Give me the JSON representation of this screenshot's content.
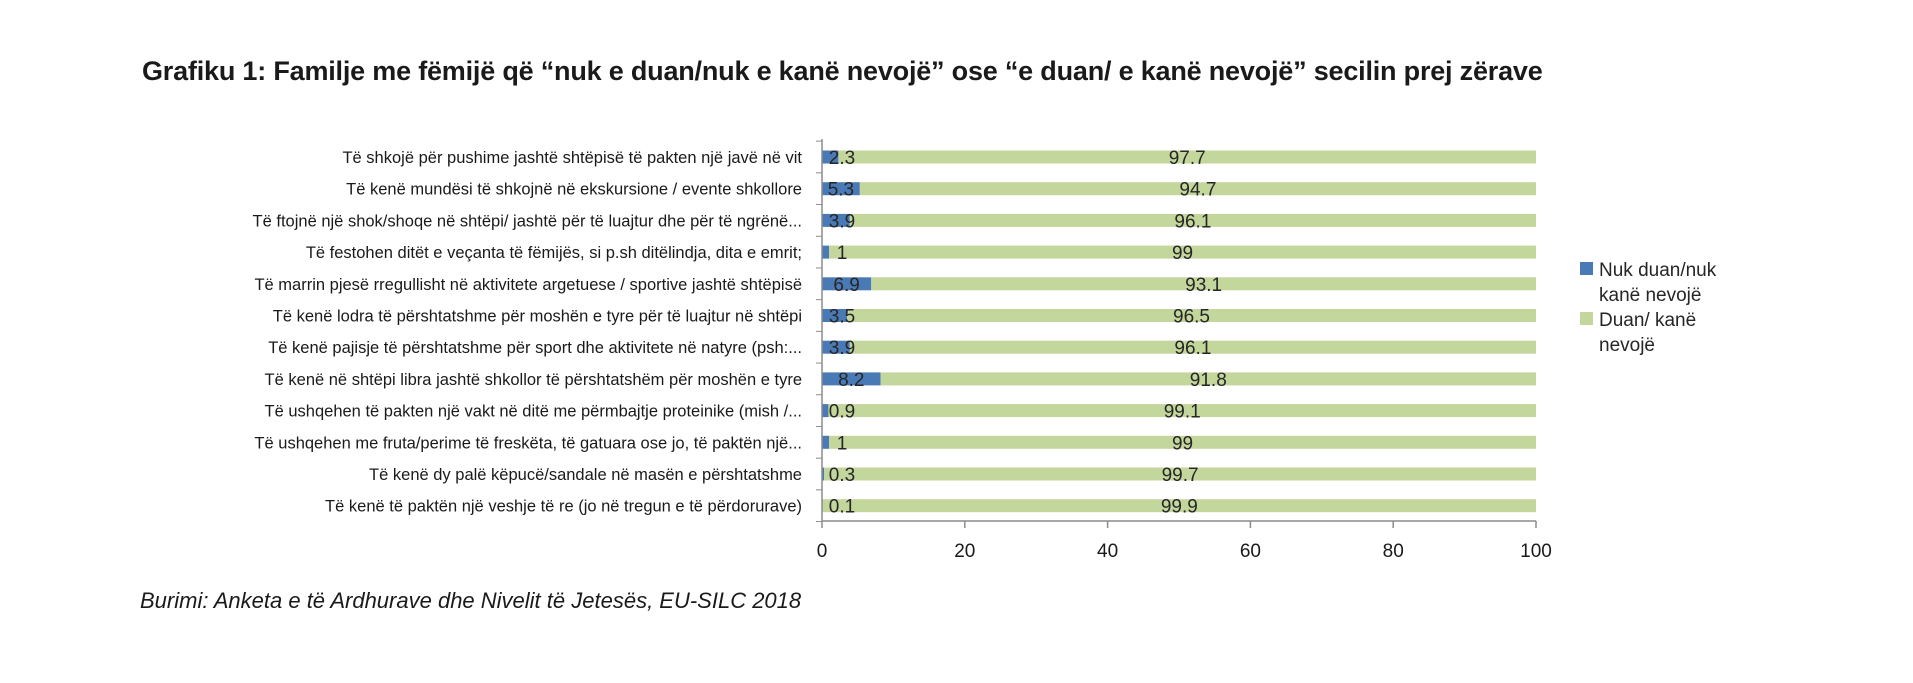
{
  "title": "Grafiku 1: Familje me fëmijë që “nuk e duan/nuk e kanë nevojë” ose “e duan/ e kanë nevojë” secilin prej zërave",
  "source": "Burimi: Anketa e të Ardhurave dhe Nivelit të Jetesës, EU-SILC 2018",
  "chart_data": {
    "type": "bar",
    "orientation": "horizontal",
    "stacked": true,
    "title": "Grafiku 1: Familje me fëmijë që “nuk e duan/nuk e kanë nevojë” ose “e duan/ e kanë nevojë” secilin prej zërave",
    "xlabel": "",
    "ylabel": "",
    "xlim": [
      0,
      100
    ],
    "xticks": [
      0,
      20,
      40,
      60,
      80,
      100
    ],
    "grid": false,
    "legend_position": "right",
    "categories": [
      "Të shkojë për pushime jashtë shtëpisë të pakten një javë në vit",
      "Të kenë mundësi të shkojnë në ekskursione / evente shkollore",
      "Të ftojnë një shok/shoqe në shtëpi/ jashtë për të luajtur dhe për të ngrënë...",
      "Të festohen ditët e veçanta të fëmijës, si p.sh ditëlindja, dita e emrit;",
      "Të marrin pjesë rregullisht në aktivitete argetuese / sportive jashtë shtëpisë",
      "Të kenë lodra  të përshtatshme për moshën e tyre për të luajtur në shtëpi",
      "Të kenë pajisje të përshtatshme për sport dhe aktivitete në natyre (psh:...",
      "Të kenë në shtëpi libra jashtë shkollor të përshtatshëm për moshën e tyre",
      "Të ushqehen të pakten një vakt në ditë me përmbajtje proteinike (mish /...",
      "Të ushqehen me fruta/perime të freskëta, të gatuara ose jo, të paktën një...",
      "Të kenë dy palë këpucë/sandale në masën e përshtatshme",
      "Të kenë të paktën një veshje të re (jo në tregun e të përdorurave)"
    ],
    "series": [
      {
        "name": "Nuk duan/nuk kanë nevojë",
        "color": "#4a7ab5",
        "values": [
          2.3,
          5.3,
          3.9,
          1,
          6.9,
          3.5,
          3.9,
          8.2,
          0.9,
          1,
          0.3,
          0.1
        ]
      },
      {
        "name": "Duan/ kanë nevojë",
        "color": "#c3d69b",
        "values": [
          97.7,
          94.7,
          96.1,
          99,
          93.1,
          96.5,
          96.1,
          91.8,
          99.1,
          99,
          99.7,
          99.9
        ]
      }
    ],
    "legend": [
      {
        "lines": [
          "Nuk duan/nuk",
          "kanë nevojë"
        ],
        "color": "#4a7ab5"
      },
      {
        "lines": [
          "Duan/ kanë",
          "nevojë"
        ],
        "color": "#c3d69b"
      }
    ]
  }
}
